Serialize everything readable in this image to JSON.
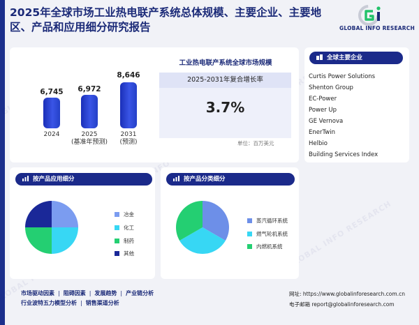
{
  "header": {
    "title": "2025年全球市场工业热电联产系统总体规模、主要企业、主要地区、产品和应用细分研究报告"
  },
  "logo": {
    "text": "GLOBAL INFO RESEARCH",
    "mark": "Gi"
  },
  "watermark_text": "GLOBAL INFO RESEARCH",
  "market": {
    "title": "工业热电联产系统全球市场规模",
    "cagr_label": "2025-2031年复合增长率",
    "cagr_value": "3.7%",
    "unit": "单位：百万美元",
    "bars": [
      {
        "value": "6,745",
        "year": "2024",
        "sub": ""
      },
      {
        "value": "6,972",
        "year": "2025",
        "sub": "(基准年预测)"
      },
      {
        "value": "8,646",
        "year": "2031",
        "sub": "(预测)"
      }
    ]
  },
  "companies": {
    "title": "全球主要企业",
    "items": [
      "Curtis Power Solutions",
      "Shenton Group",
      "EC-Power",
      "Power Up",
      "GE Vernova",
      "EnerTwin",
      "Helbio",
      "Building Services Index"
    ]
  },
  "application": {
    "title": "按产品应用细分",
    "legend": [
      "冶金",
      "化工",
      "制药",
      "其他"
    ],
    "colors": [
      "#7b9cf0",
      "#37d7f4",
      "#24cf72",
      "#1a2898"
    ]
  },
  "product": {
    "title": "按产品分类细分",
    "legend": [
      "蒸汽循环系统",
      "燃气轮机系统",
      "内燃机系统"
    ],
    "colors": [
      "#6d8fe8",
      "#37d7f4",
      "#24cf72"
    ]
  },
  "footer": {
    "links_row1": [
      "市场驱动因素",
      "阻碍因素",
      "发展趋势",
      "产业链分析"
    ],
    "links_row2": [
      "行业波特五力模型分析",
      "销售渠道分析"
    ],
    "website_label": "网址",
    "website": "https://www.globalinforesearch.com.cn",
    "email_label": "电子邮箱",
    "email": "report@globalinforesearch.com"
  }
}
